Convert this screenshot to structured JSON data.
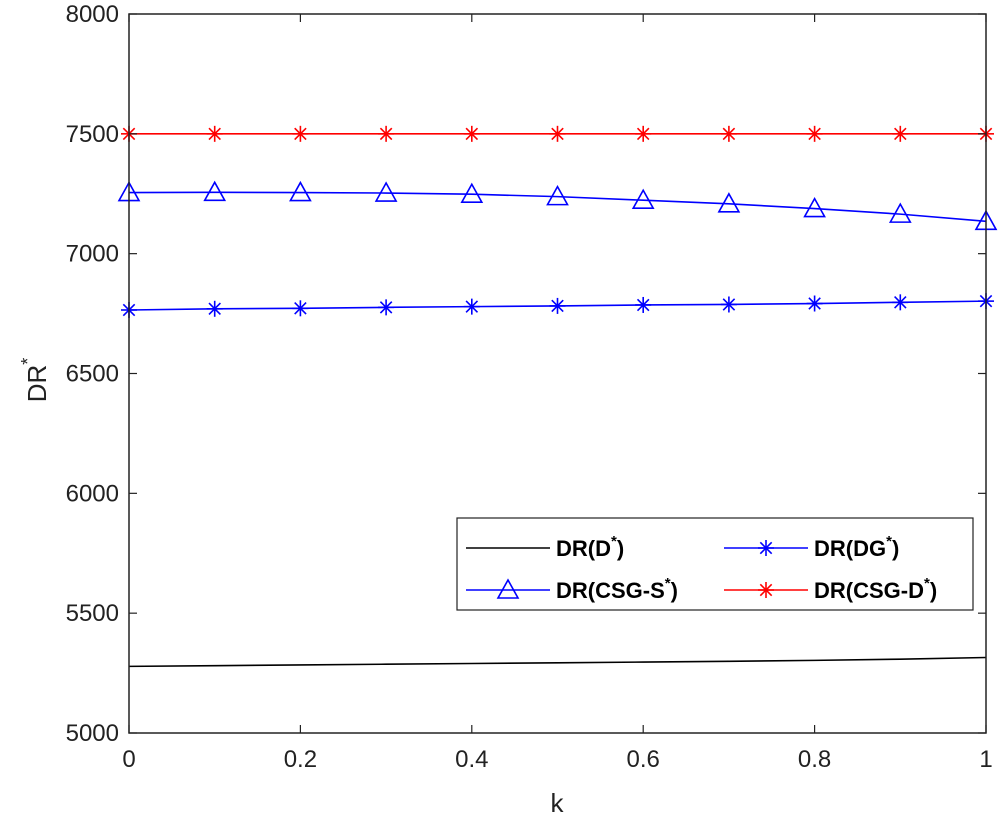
{
  "chart_data": {
    "type": "line",
    "xlabel": "k",
    "ylabel": "DR",
    "ylabel_superscript": "*",
    "xlim": [
      0,
      1
    ],
    "ylim": [
      5000,
      8000
    ],
    "xticks": [
      0,
      0.2,
      0.4,
      0.6,
      0.8,
      1
    ],
    "xtick_labels": [
      "0",
      "0.2",
      "0.4",
      "0.6",
      "0.8",
      "1"
    ],
    "yticks": [
      5000,
      5500,
      6000,
      6500,
      7000,
      7500,
      8000
    ],
    "ytick_labels": [
      "5000",
      "5500",
      "6000",
      "6500",
      "7000",
      "7500",
      "8000"
    ],
    "grid": false,
    "legend_placement": "lower-right",
    "x": [
      0,
      0.1,
      0.2,
      0.3,
      0.4,
      0.5,
      0.6,
      0.7,
      0.8,
      0.9,
      1.0
    ],
    "series": [
      {
        "name": "DR(D*)",
        "label_base": "DR(D",
        "label_sup": "*",
        "label_end": ")",
        "color": "#000000",
        "marker": "none",
        "values": [
          5278,
          5281,
          5284,
          5287,
          5290,
          5293,
          5296,
          5299,
          5303,
          5308,
          5315
        ]
      },
      {
        "name": "DR(DG*)",
        "label_base": "DR(DG",
        "label_sup": "*",
        "label_end": ")",
        "color": "#0000ff",
        "marker": "star",
        "values": [
          6765,
          6770,
          6772,
          6776,
          6779,
          6782,
          6786,
          6788,
          6792,
          6797,
          6802
        ]
      },
      {
        "name": "DR(CSG-S*)",
        "label_base": "DR(CSG-S",
        "label_sup": "*",
        "label_end": ")",
        "color": "#0000ff",
        "marker": "triangle",
        "values": [
          7255,
          7256,
          7255,
          7253,
          7248,
          7238,
          7223,
          7208,
          7188,
          7165,
          7135
        ]
      },
      {
        "name": "DR(CSG-D*)",
        "label_base": "DR(CSG-D",
        "label_sup": "*",
        "label_end": ")",
        "color": "#ff0000",
        "marker": "star",
        "values": [
          7500,
          7500,
          7500,
          7500,
          7500,
          7500,
          7500,
          7500,
          7500,
          7500,
          7500
        ]
      }
    ]
  }
}
